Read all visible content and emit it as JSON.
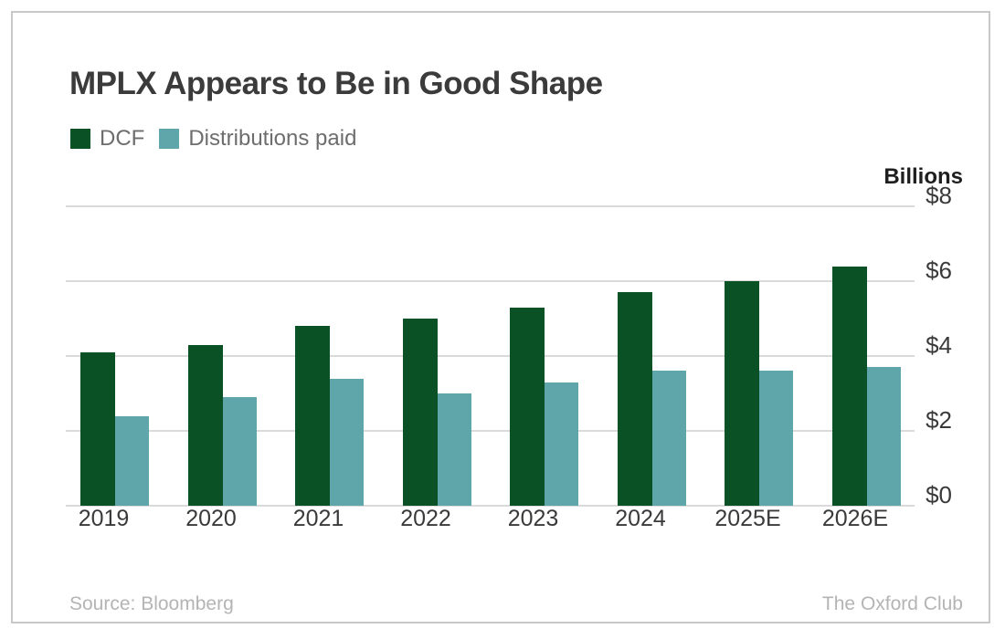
{
  "title": "MPLX Appears to Be in Good Shape",
  "legend": [
    {
      "label": "DCF",
      "color": "#0a5226"
    },
    {
      "label": "Distributions paid",
      "color": "#5ea6a9"
    }
  ],
  "y_axis": {
    "unit_label": "Billions",
    "ticks": [
      {
        "label": "$8",
        "value": 8
      },
      {
        "label": "$6",
        "value": 6
      },
      {
        "label": "$4",
        "value": 4
      },
      {
        "label": "$2",
        "value": 2
      },
      {
        "label": "$0",
        "value": 0
      }
    ]
  },
  "footer": {
    "source": "Source: Bloomberg",
    "brand": "The Oxford Club"
  },
  "chart_data": {
    "type": "bar",
    "title": "MPLX Appears to Be in Good Shape",
    "categories": [
      "2019",
      "2020",
      "2021",
      "2022",
      "2023",
      "2024",
      "2025E",
      "2026E"
    ],
    "series": [
      {
        "name": "DCF",
        "color": "#0a5226",
        "values": [
          4.1,
          4.3,
          4.8,
          5.0,
          5.3,
          5.7,
          6.0,
          6.4
        ]
      },
      {
        "name": "Distributions paid",
        "color": "#5ea6a9",
        "values": [
          2.4,
          2.9,
          3.4,
          3.0,
          3.3,
          3.6,
          3.6,
          3.7
        ]
      }
    ],
    "xlabel": "",
    "ylabel": "Billions",
    "ylim": [
      0,
      8
    ],
    "yticks": [
      0,
      2,
      4,
      6,
      8
    ],
    "grid": true,
    "legend_position": "top-left",
    "gridline_color": "#dadada"
  }
}
